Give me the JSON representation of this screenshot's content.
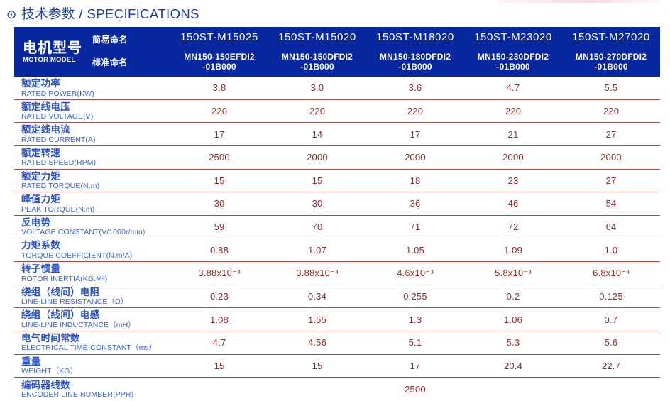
{
  "colors": {
    "header-bg": "#06279e",
    "title-blue": "#1c3ea9",
    "label-blue": "#2a52c4",
    "label-blue-light": "#3c66cf",
    "value-maroon": "#8e2c2a",
    "separator": "#9c4e4a"
  },
  "page": {
    "title_icon": "⊙",
    "title": "技术参数 / SPECIFICATIONS"
  },
  "table": {
    "header": {
      "motor_model_zh": "电机型号",
      "motor_model_en": "MOTOR MODEL",
      "simple_name_label": "简易命名",
      "standard_name_label": "标准命名",
      "models": [
        {
          "simple": "150ST-M15025",
          "std1": "MN150-150EFDI2",
          "std2": "-01B000"
        },
        {
          "simple": "150ST-M15020",
          "std1": "MN150-150DFDI2",
          "std2": "-01B000"
        },
        {
          "simple": "150ST-M18020",
          "std1": "MN150-180DFDI2",
          "std2": "-01B000"
        },
        {
          "simple": "150ST-M23020",
          "std1": "MN150-230DFDI2",
          "std2": "-01B000"
        },
        {
          "simple": "150ST-M27020",
          "std1": "MN150-270DFDI2",
          "std2": "-01B000"
        }
      ]
    },
    "rows": [
      {
        "zh": "额定功率",
        "en": "RATED POWER(KW)",
        "values": [
          "3.8",
          "3.0",
          "3.6",
          "4.7",
          "5.5"
        ]
      },
      {
        "zh": "额定线电压",
        "en": "RATED VOLTAGE(V)",
        "values": [
          "220",
          "220",
          "220",
          "220",
          "220"
        ]
      },
      {
        "zh": "额定线电流",
        "en": "RATED CURRENT(A)",
        "values": [
          "17",
          "14",
          "17",
          "21",
          "27"
        ]
      },
      {
        "zh": "额定转速",
        "en": "RATED SPEED(RPM)",
        "values": [
          "2500",
          "2000",
          "2000",
          "2000",
          "2000"
        ]
      },
      {
        "zh": "额定力矩",
        "en": "RATED TORQUE(N.m)",
        "values": [
          "15",
          "15",
          "18",
          "23",
          "27"
        ]
      },
      {
        "zh": "峰值力矩",
        "en": "PEAK TORQUE(N.m)",
        "values": [
          "30",
          "30",
          "36",
          "46",
          "54"
        ]
      },
      {
        "zh": "反电势",
        "en": "VOLTAGE CONSTANT(V/1000r/min)",
        "values": [
          "59",
          "70",
          "71",
          "72",
          "64"
        ]
      },
      {
        "zh": "力矩系数",
        "en": "TORQUE COEFFICIENT(N.m/A)",
        "values": [
          "0.88",
          "1.07",
          "1.05",
          "1.09",
          "1.0"
        ]
      },
      {
        "zh": "转子惯量",
        "en": "ROTOR INERTIA(KG.M²)",
        "values": [
          "3.88x10⁻³",
          "3.88x10⁻³",
          "4.6x10⁻³",
          "5.8x10⁻³",
          "6.8x10⁻³"
        ]
      },
      {
        "zh": "绕组（线间）电阻",
        "en": "LINE-LINE RESISTANCE（Ω）",
        "values": [
          "0.23",
          "0.34",
          "0.255",
          "0.2",
          "0.125"
        ]
      },
      {
        "zh": "绕组（线间）电感",
        "en": "LINE-LINE INDUCTANCE（mH）",
        "values": [
          "1.08",
          "1.55",
          "1.3",
          "1.06",
          "0.7"
        ]
      },
      {
        "zh": "电气时间常数",
        "en": "ELECTRICAL TIME-CONSTANT（ms）",
        "values": [
          "4.7",
          "4.56",
          "5.1",
          "5.3",
          "5.6"
        ]
      },
      {
        "zh": "重量",
        "en": "WEIGHT（KG）",
        "values": [
          "15",
          "15",
          "17",
          "20.4",
          "22.7"
        ]
      },
      {
        "zh": "编码器线数",
        "en": "ENCODER LINE NUMBER(PPR)",
        "span_value": "2500"
      }
    ]
  }
}
